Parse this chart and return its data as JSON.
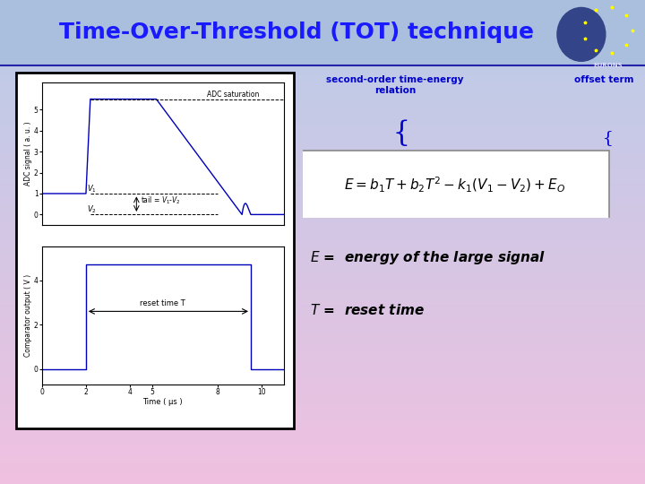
{
  "title": "Time-Over-Threshold (TOT) technique",
  "title_color": "#1a1aff",
  "title_fontsize": 18,
  "bg_top_color": "#b8cce8",
  "bg_bottom_color": "#f0c0e0",
  "second_order_label": "second-order time-energy\nrelation",
  "offset_label": "offset term",
  "annotation_color": "#0000cc",
  "subplot_line_color": "#0000bb",
  "time_ticks": [
    0,
    2,
    4,
    5,
    8,
    10
  ],
  "border_color": "#000000",
  "formula_fontsize": 11,
  "label_fontsize": 11
}
